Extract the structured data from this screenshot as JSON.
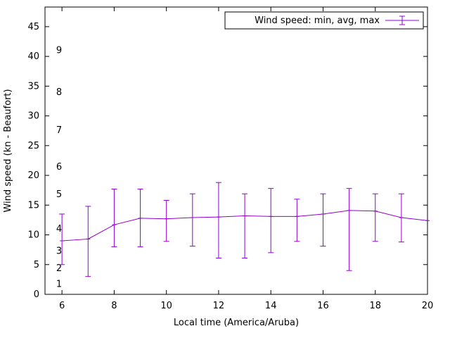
{
  "chart_data": {
    "type": "line",
    "title": "",
    "legend_label": "Wind speed: min, avg, max",
    "xlabel": "Local time (America/Aruba)",
    "ylabel": "Wind speed (kn - Beaufort)",
    "series_color": "#9400d3",
    "axis_color": "#000000",
    "legend_position": "top-right-boxed",
    "grid": false,
    "xlim": [
      5.35,
      20
    ],
    "ylim": [
      0,
      48.3
    ],
    "x_ticks": [
      6,
      8,
      10,
      12,
      14,
      16,
      18,
      20
    ],
    "y_ticks": [
      0,
      5,
      10,
      15,
      20,
      25,
      30,
      35,
      40,
      45
    ],
    "beaufort_scale_labels": [
      {
        "label": "1",
        "kn": 1.7
      },
      {
        "label": "2",
        "kn": 4.4
      },
      {
        "label": "3",
        "kn": 7.3
      },
      {
        "label": "4",
        "kn": 11.0
      },
      {
        "label": "5",
        "kn": 16.8
      },
      {
        "label": "6",
        "kn": 21.4
      },
      {
        "label": "7",
        "kn": 27.6
      },
      {
        "label": "8",
        "kn": 34.0
      },
      {
        "label": "9",
        "kn": 41.0
      }
    ],
    "x": [
      6,
      7,
      8,
      9,
      10,
      11,
      12,
      13,
      14,
      15,
      16,
      17,
      18,
      19,
      20
    ],
    "series": [
      {
        "name": "avg",
        "values": [
          9.0,
          9.3,
          11.7,
          12.8,
          12.7,
          12.9,
          13.0,
          13.2,
          13.1,
          13.1,
          13.5,
          14.1,
          14.0,
          12.9,
          12.4
        ]
      },
      {
        "name": "min",
        "values": [
          5.0,
          3.0,
          8.0,
          8.0,
          8.9,
          8.1,
          6.1,
          6.1,
          7.0,
          8.9,
          8.1,
          4.0,
          8.9,
          8.8,
          null
        ]
      },
      {
        "name": "max",
        "values": [
          13.5,
          14.8,
          17.7,
          17.7,
          15.8,
          16.9,
          18.8,
          16.9,
          17.8,
          16.0,
          16.9,
          17.8,
          16.9,
          16.9,
          null
        ]
      }
    ]
  }
}
